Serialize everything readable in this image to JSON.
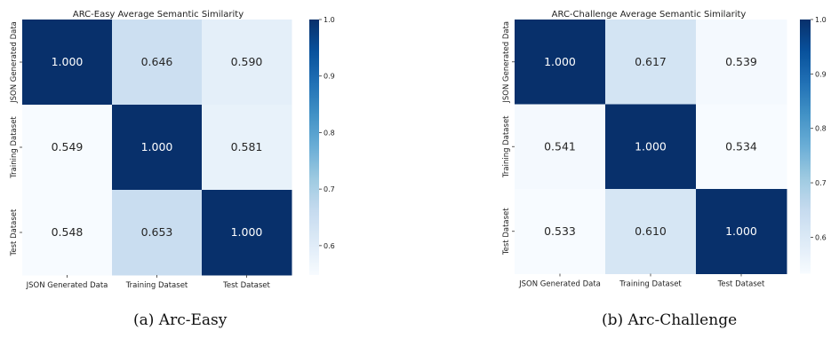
{
  "colors": {
    "scale": [
      "#f7fbff",
      "#deebf7",
      "#c6dbef",
      "#9ecae1",
      "#6baed6",
      "#4292c6",
      "#2171b5",
      "#08519c",
      "#08306b"
    ],
    "text_dark": "#262626",
    "text_light": "#ffffff"
  },
  "chart_data": [
    {
      "type": "heatmap",
      "title": "ARC-Easy Average Semantic Similarity",
      "caption": "(a) Arc-Easy",
      "x_labels": [
        "JSON Generated Data",
        "Training Dataset",
        "Test Dataset"
      ],
      "y_labels": [
        "JSON Generated Data",
        "Training Dataset",
        "Test Dataset"
      ],
      "values": [
        [
          1.0,
          0.646,
          0.59
        ],
        [
          0.549,
          1.0,
          0.581
        ],
        [
          0.548,
          0.653,
          1.0
        ]
      ],
      "value_labels": [
        [
          "1.000",
          "0.646",
          "0.590"
        ],
        [
          "0.549",
          "1.000",
          "0.581"
        ],
        [
          "0.548",
          "0.653",
          "1.000"
        ]
      ],
      "colorbar": {
        "min": 0.548,
        "max": 1.0,
        "ticks": [
          0.6,
          0.7,
          0.8,
          0.9,
          1.0
        ],
        "tick_labels": [
          "0.6",
          "0.7",
          "0.8",
          "0.9",
          "1.0"
        ]
      }
    },
    {
      "type": "heatmap",
      "title": "ARC-Challenge Average Semantic Similarity",
      "caption": "(b) Arc-Challenge",
      "x_labels": [
        "JSON Generated Data",
        "Training Dataset",
        "Test Dataset"
      ],
      "y_labels": [
        "JSON Generated Data",
        "Training Dataset",
        "Test Dataset"
      ],
      "values": [
        [
          1.0,
          0.617,
          0.539
        ],
        [
          0.541,
          1.0,
          0.534
        ],
        [
          0.533,
          0.61,
          1.0
        ]
      ],
      "value_labels": [
        [
          "1.000",
          "0.617",
          "0.539"
        ],
        [
          "0.541",
          "1.000",
          "0.534"
        ],
        [
          "0.533",
          "0.610",
          "1.000"
        ]
      ],
      "colorbar": {
        "min": 0.533,
        "max": 1.0,
        "ticks": [
          0.6,
          0.7,
          0.8,
          0.9,
          1.0
        ],
        "tick_labels": [
          "0.6",
          "0.7",
          "0.8",
          "0.9",
          "1.0"
        ]
      }
    }
  ]
}
